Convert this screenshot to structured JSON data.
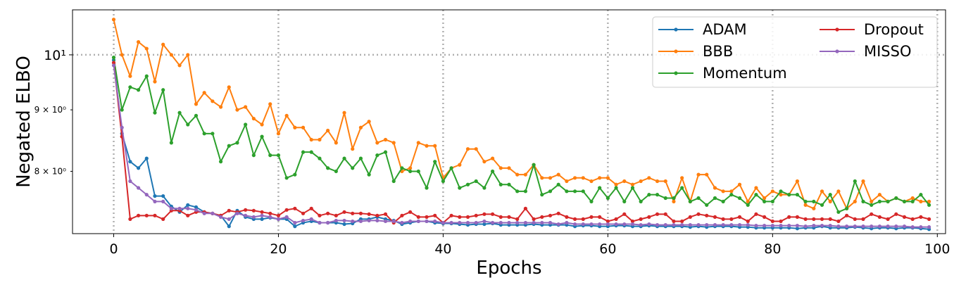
{
  "chart_data": {
    "type": "line",
    "title": "",
    "xlabel": "Epochs",
    "ylabel": "Negated ELBO",
    "xlim": [
      -5,
      101
    ],
    "ylim": [
      7.1,
      10.9
    ],
    "yscale": "log",
    "grid": true,
    "grid_style": "dotted",
    "legend_placement": "top-right",
    "x_ticks": [
      0,
      20,
      40,
      60,
      80,
      100
    ],
    "x_tick_labels": [
      "0",
      "20",
      "40",
      "60",
      "80",
      "100"
    ],
    "y_ticks": [
      8,
      9,
      10
    ],
    "y_tick_labels": [
      "8 × 10⁰",
      "9 × 10⁰",
      "10¹"
    ],
    "series": [
      {
        "name": "ADAM",
        "color": "#1f77b4",
        "values": [
          9.9,
          8.6,
          8.15,
          8.05,
          8.2,
          7.63,
          7.63,
          7.48,
          7.4,
          7.5,
          7.47,
          7.4,
          7.38,
          7.35,
          7.2,
          7.42,
          7.33,
          7.3,
          7.3,
          7.32,
          7.3,
          7.3,
          7.2,
          7.25,
          7.27,
          7.25,
          7.25,
          7.25,
          7.23,
          7.24,
          7.3,
          7.3,
          7.33,
          7.3,
          7.28,
          7.23,
          7.25,
          7.27,
          7.27,
          7.25,
          7.24,
          7.24,
          7.23,
          7.22,
          7.23,
          7.23,
          7.24,
          7.22,
          7.22,
          7.22,
          7.22,
          7.23,
          7.22,
          7.22,
          7.22,
          7.22,
          7.2,
          7.21,
          7.21,
          7.2,
          7.2,
          7.21,
          7.21,
          7.2,
          7.2,
          7.21,
          7.2,
          7.2,
          7.2,
          7.2,
          7.19,
          7.2,
          7.19,
          7.2,
          7.2,
          7.2,
          7.19,
          7.19,
          7.18,
          7.18,
          7.18,
          7.18,
          7.18,
          7.17,
          7.18,
          7.18,
          7.2,
          7.18,
          7.18,
          7.18,
          7.19,
          7.18,
          7.17,
          7.18,
          7.18,
          7.17,
          7.18,
          7.18,
          7.17,
          7.16
        ]
      },
      {
        "name": "BBB",
        "color": "#ff7f0e",
        "values": [
          10.7,
          10.0,
          9.6,
          10.25,
          10.12,
          9.5,
          10.2,
          10.0,
          9.8,
          10.0,
          9.1,
          9.3,
          9.15,
          9.05,
          9.4,
          9.0,
          9.05,
          8.85,
          8.75,
          9.1,
          8.6,
          8.9,
          8.7,
          8.7,
          8.5,
          8.5,
          8.65,
          8.45,
          8.95,
          8.35,
          8.7,
          8.8,
          8.45,
          8.5,
          8.45,
          8.0,
          8.05,
          8.45,
          8.4,
          8.4,
          7.9,
          8.05,
          8.1,
          8.35,
          8.35,
          8.15,
          8.2,
          8.05,
          8.05,
          7.95,
          7.95,
          8.1,
          7.9,
          7.9,
          7.95,
          7.85,
          7.9,
          7.9,
          7.85,
          7.9,
          7.9,
          7.8,
          7.85,
          7.8,
          7.85,
          7.9,
          7.85,
          7.85,
          7.55,
          7.9,
          7.55,
          7.95,
          7.95,
          7.75,
          7.7,
          7.7,
          7.8,
          7.55,
          7.75,
          7.6,
          7.7,
          7.65,
          7.65,
          7.85,
          7.5,
          7.45,
          7.7,
          7.55,
          7.7,
          7.45,
          7.55,
          7.85,
          7.55,
          7.65,
          7.55,
          7.6,
          7.55,
          7.6,
          7.55,
          7.55
        ]
      },
      {
        "name": "Momentum",
        "color": "#2ca02c",
        "values": [
          9.95,
          9.0,
          9.4,
          9.35,
          9.6,
          8.95,
          9.35,
          8.45,
          8.95,
          8.75,
          8.9,
          8.6,
          8.6,
          8.15,
          8.4,
          8.45,
          8.75,
          8.25,
          8.55,
          8.25,
          8.25,
          7.9,
          7.95,
          8.3,
          8.3,
          8.2,
          8.05,
          8.0,
          8.2,
          8.05,
          8.2,
          7.95,
          8.25,
          8.3,
          7.85,
          8.05,
          8.0,
          8.0,
          7.75,
          8.15,
          7.85,
          8.05,
          7.75,
          7.8,
          7.85,
          7.75,
          8.0,
          7.8,
          7.8,
          7.7,
          7.7,
          8.1,
          7.65,
          7.7,
          7.8,
          7.7,
          7.7,
          7.7,
          7.55,
          7.75,
          7.6,
          7.75,
          7.55,
          7.75,
          7.55,
          7.65,
          7.65,
          7.6,
          7.6,
          7.75,
          7.55,
          7.6,
          7.5,
          7.6,
          7.55,
          7.65,
          7.6,
          7.5,
          7.65,
          7.55,
          7.55,
          7.7,
          7.65,
          7.65,
          7.55,
          7.55,
          7.5,
          7.65,
          7.4,
          7.45,
          7.85,
          7.55,
          7.5,
          7.55,
          7.55,
          7.6,
          7.55,
          7.55,
          7.65,
          7.5
        ]
      },
      {
        "name": "Dropout",
        "color": "#d62728",
        "values": [
          9.85,
          8.55,
          7.3,
          7.35,
          7.35,
          7.35,
          7.3,
          7.42,
          7.42,
          7.35,
          7.4,
          7.4,
          7.38,
          7.35,
          7.42,
          7.4,
          7.43,
          7.42,
          7.4,
          7.38,
          7.35,
          7.43,
          7.45,
          7.38,
          7.45,
          7.35,
          7.38,
          7.35,
          7.4,
          7.38,
          7.38,
          7.37,
          7.35,
          7.37,
          7.25,
          7.35,
          7.4,
          7.33,
          7.33,
          7.35,
          7.25,
          7.35,
          7.33,
          7.33,
          7.35,
          7.37,
          7.37,
          7.33,
          7.33,
          7.3,
          7.45,
          7.3,
          7.33,
          7.35,
          7.38,
          7.33,
          7.3,
          7.3,
          7.33,
          7.33,
          7.27,
          7.3,
          7.37,
          7.27,
          7.3,
          7.33,
          7.37,
          7.37,
          7.27,
          7.27,
          7.33,
          7.37,
          7.35,
          7.33,
          7.3,
          7.3,
          7.33,
          7.27,
          7.37,
          7.33,
          7.27,
          7.27,
          7.33,
          7.33,
          7.3,
          7.3,
          7.3,
          7.3,
          7.27,
          7.35,
          7.3,
          7.3,
          7.37,
          7.33,
          7.3,
          7.37,
          7.33,
          7.3,
          7.33,
          7.3
        ]
      },
      {
        "name": "MISSO",
        "color": "#9467bd",
        "values": [
          9.8,
          8.7,
          7.85,
          7.75,
          7.65,
          7.55,
          7.55,
          7.45,
          7.45,
          7.45,
          7.43,
          7.38,
          7.38,
          7.33,
          7.3,
          7.38,
          7.35,
          7.33,
          7.35,
          7.33,
          7.3,
          7.33,
          7.25,
          7.28,
          7.3,
          7.25,
          7.25,
          7.28,
          7.28,
          7.27,
          7.27,
          7.28,
          7.28,
          7.27,
          7.27,
          7.25,
          7.27,
          7.27,
          7.27,
          7.27,
          7.25,
          7.25,
          7.25,
          7.25,
          7.25,
          7.27,
          7.25,
          7.25,
          7.25,
          7.25,
          7.25,
          7.25,
          7.25,
          7.25,
          7.23,
          7.25,
          7.23,
          7.23,
          7.23,
          7.23,
          7.23,
          7.23,
          7.23,
          7.23,
          7.22,
          7.23,
          7.22,
          7.22,
          7.22,
          7.22,
          7.22,
          7.22,
          7.22,
          7.22,
          7.22,
          7.22,
          7.22,
          7.22,
          7.21,
          7.21,
          7.21,
          7.21,
          7.21,
          7.21,
          7.2,
          7.21,
          7.21,
          7.21,
          7.2,
          7.2,
          7.2,
          7.2,
          7.2,
          7.2,
          7.2,
          7.2,
          7.2,
          7.19,
          7.19,
          7.19
        ]
      }
    ]
  }
}
